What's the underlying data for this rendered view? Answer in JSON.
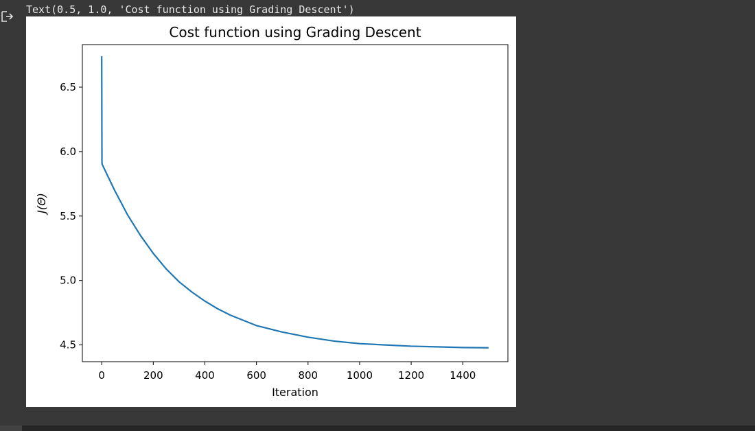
{
  "cell_output": {
    "text_repr": "Text(0.5, 1.0, 'Cost function using Grading Descent')",
    "icon": "output-arrow-icon"
  },
  "colors": {
    "background": "#383838",
    "figure_background": "#ffffff",
    "line": "#1f77b4",
    "text": "#e8e8e8"
  },
  "chart_data": {
    "type": "line",
    "title": "Cost function using Grading Descent",
    "xlabel": "Iteration",
    "ylabel": "J(Θ)",
    "xlim": [
      -75,
      1575
    ],
    "ylim": [
      4.37,
      6.83
    ],
    "xticks": [
      0,
      200,
      400,
      600,
      800,
      1000,
      1200,
      1400
    ],
    "yticks": [
      4.5,
      5.0,
      5.5,
      6.0,
      6.5
    ],
    "x_tick_labels": [
      "0",
      "200",
      "400",
      "600",
      "800",
      "1000",
      "1200",
      "1400"
    ],
    "y_tick_labels": [
      "4.5",
      "5.0",
      "5.5",
      "6.0",
      "6.5"
    ],
    "grid": false,
    "series": [
      {
        "color": "#1f77b4",
        "x": [
          0,
          1,
          2,
          50,
          100,
          150,
          200,
          250,
          300,
          350,
          400,
          450,
          500,
          600,
          700,
          800,
          900,
          1000,
          1100,
          1200,
          1300,
          1400,
          1500
        ],
        "y": [
          6.74,
          5.91,
          5.9,
          5.7,
          5.51,
          5.35,
          5.21,
          5.09,
          4.99,
          4.91,
          4.84,
          4.78,
          4.73,
          4.65,
          4.6,
          4.56,
          4.53,
          4.51,
          4.5,
          4.49,
          4.485,
          4.48,
          4.478
        ]
      }
    ]
  }
}
